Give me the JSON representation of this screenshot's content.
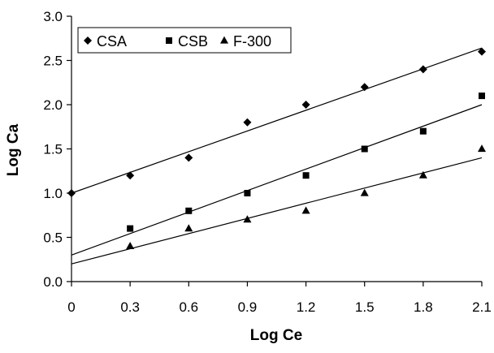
{
  "chart_data": {
    "type": "scatter",
    "title": "",
    "xlabel": "Log Ce",
    "ylabel": "Log Ca",
    "xlim": [
      0,
      2.1
    ],
    "ylim": [
      0,
      3.0
    ],
    "x_ticks": [
      "0",
      "0.3",
      "0.6",
      "0.9",
      "1.2",
      "1.5",
      "1.8",
      "2.1"
    ],
    "y_ticks": [
      "0.0",
      "0.5",
      "1.0",
      "1.5",
      "2.0",
      "2.5",
      "3.0"
    ],
    "grid": false,
    "legend": {
      "position": "top-left",
      "entries": [
        "CSA",
        "CSB",
        "F-300"
      ]
    },
    "series": [
      {
        "name": "CSA",
        "marker": "diamond",
        "x": [
          0,
          0.3,
          0.6,
          0.9,
          1.2,
          1.5,
          1.8,
          2.1
        ],
        "y": [
          1.0,
          1.2,
          1.4,
          1.8,
          2.0,
          2.2,
          2.4,
          2.6
        ],
        "trendline": {
          "x": [
            0,
            2.1
          ],
          "y": [
            1.0,
            2.64
          ]
        }
      },
      {
        "name": "CSB",
        "marker": "square",
        "x": [
          0.3,
          0.6,
          0.9,
          1.2,
          1.5,
          1.8,
          2.1
        ],
        "y": [
          0.6,
          0.8,
          1.0,
          1.2,
          1.5,
          1.7,
          2.1
        ],
        "trendline": {
          "x": [
            0,
            2.1
          ],
          "y": [
            0.3,
            2.0
          ]
        }
      },
      {
        "name": "F-300",
        "marker": "triangle",
        "x": [
          0.3,
          0.6,
          0.9,
          1.2,
          1.5,
          1.8,
          2.1
        ],
        "y": [
          0.4,
          0.6,
          0.7,
          0.8,
          1.0,
          1.2,
          1.5
        ],
        "trendline": {
          "x": [
            0,
            2.1
          ],
          "y": [
            0.2,
            1.4
          ]
        }
      }
    ],
    "colors": {
      "marker": "#000000",
      "line": "#000000",
      "axis": "#000000",
      "background": "#ffffff"
    }
  }
}
